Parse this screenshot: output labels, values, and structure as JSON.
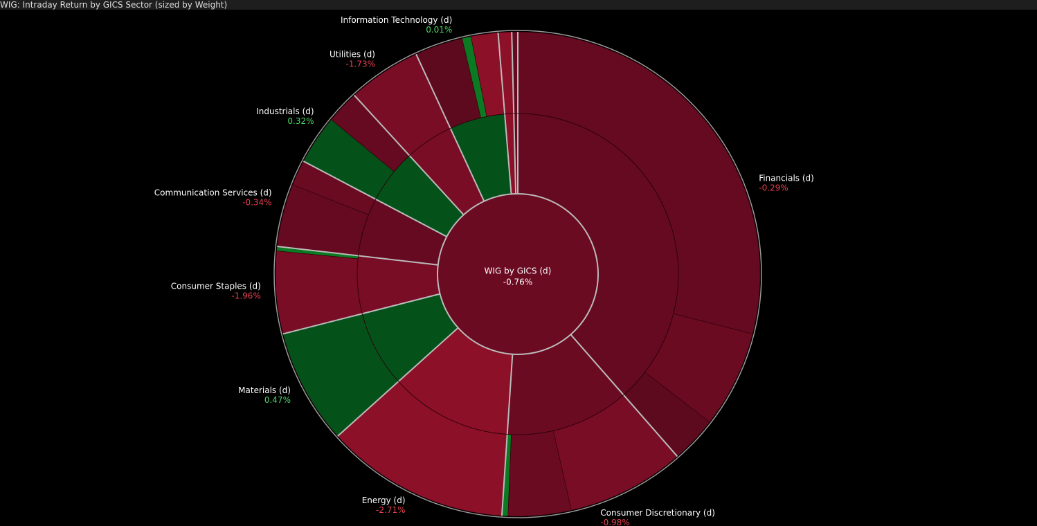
{
  "chart_data": {
    "type": "sunburst",
    "title": "WIG: Intraday Return by GICS Sector (sized by Weight)",
    "center": {
      "label": "WIG by GICS (d)",
      "value": -0.76,
      "value_label": "-0.76%",
      "color": "#6a0b22"
    },
    "categories": [
      "Financials (d)",
      "Consumer Discretionary (d)",
      "Energy (d)",
      "Materials (d)",
      "Consumer Staples (d)",
      "Communication Services (d)",
      "Industrials (d)",
      "Utilities (d)",
      "Information Technology (d)",
      null,
      null
    ],
    "values": [
      38.6,
      12.5,
      12.3,
      7.7,
      5.8,
      5.9,
      5.5,
      4.9,
      5.6,
      0.9,
      0.4
    ],
    "returns": [
      -0.29,
      -0.98,
      -2.71,
      0.47,
      -1.96,
      -0.34,
      0.32,
      -1.73,
      0.01,
      null,
      null
    ],
    "value_labels": [
      "-0.29%",
      "-0.98%",
      "-2.71%",
      "0.47%",
      "-1.96%",
      "-0.34%",
      "0.32%",
      "-1.73%",
      "0.01%",
      null,
      null
    ],
    "colors": [
      "#650a20",
      "#6a0b22",
      "#8c1028",
      "#04521a",
      "#7a0d26",
      "#650a20",
      "#04521a",
      "#7a0d26",
      "#04521a",
      "#8c1028",
      "#650a20"
    ],
    "children": [
      {
        "values": [
          29.0,
          6.5,
          3.1
        ],
        "colors": [
          "#650a20",
          "#6a0b22",
          "#5e0a1e"
        ]
      },
      {
        "values": [
          7.9,
          4.2,
          0.4
        ],
        "colors": [
          "#7a0d26",
          "#6a0b22",
          "#0b7a22"
        ]
      },
      {
        "values": [
          12.3
        ],
        "colors": [
          "#8c1028"
        ]
      },
      {
        "values": [
          7.7
        ],
        "colors": [
          "#04521a"
        ]
      },
      {
        "values": [
          5.5,
          0.3
        ],
        "colors": [
          "#7a0d26",
          "#0b7a22"
        ]
      },
      {
        "values": [
          4.2,
          1.7
        ],
        "colors": [
          "#650a20",
          "#6a0b22"
        ]
      },
      {
        "values": [
          3.3,
          2.2
        ],
        "colors": [
          "#04521a",
          "#650a20"
        ]
      },
      {
        "values": [
          4.9
        ],
        "colors": [
          "#7a0d26"
        ]
      },
      {
        "values": [
          3.2,
          0.6,
          1.8
        ],
        "colors": [
          "#5e0a1e",
          "#0b7a22",
          "#8c1028"
        ]
      },
      {
        "values": [
          0.9
        ],
        "colors": [
          "#8c1028"
        ]
      },
      {
        "values": [
          0.4
        ],
        "colors": [
          "#650a20"
        ]
      }
    ]
  }
}
